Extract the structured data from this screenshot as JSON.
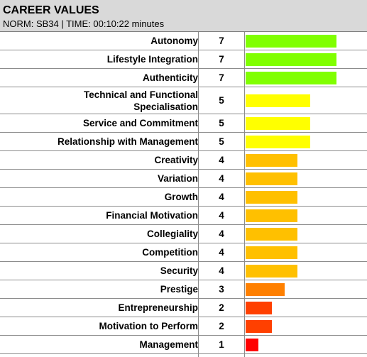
{
  "header": {
    "title": "CAREER VALUES",
    "subtitle": "NORM: SB34 | TIME: 00:10:22 minutes"
  },
  "colors": {
    "7": "#80ff00",
    "5": "#ffff00",
    "4": "#ffc000",
    "3": "#ff8000",
    "2": "#ff4000",
    "1": "#ff0000"
  },
  "chart_data": {
    "type": "bar",
    "orientation": "horizontal",
    "title": "CAREER VALUES",
    "subtitle": "NORM: SB34 | TIME: 00:10:22 minutes",
    "xlim": [
      0,
      7
    ],
    "categories": [
      "Autonomy",
      "Lifestyle Integration",
      "Authenticity",
      "Technical and Functional\nSpecialisation",
      "Service and Commitment",
      "Relationship with Management",
      "Creativity",
      "Variation",
      "Growth",
      "Financial Motivation",
      "Collegiality",
      "Competition",
      "Security",
      "Prestige",
      "Entrepreneurship",
      "Motivation to Perform",
      "Management"
    ],
    "values": [
      7,
      7,
      7,
      5,
      5,
      5,
      4,
      4,
      4,
      4,
      4,
      4,
      4,
      3,
      2,
      2,
      1
    ]
  }
}
